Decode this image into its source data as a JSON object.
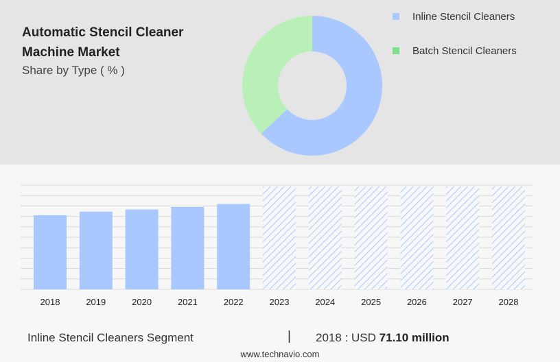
{
  "title": "Automatic Stencil Cleaner Machine Market",
  "subtitle": "Share by Type ( % )",
  "colors": {
    "inline": "#a8c8ff",
    "batch": "#b8f0b8",
    "batch_legend": "#7ee08e",
    "hatch": "#a8c8ff",
    "grid": "#d8d8d8"
  },
  "chart_data": [
    {
      "type": "pie",
      "title": "Automatic Stencil Cleaner Machine Market",
      "subtitle": "Share by Type ( % )",
      "legend_position": "top-right",
      "categories": [
        "Inline Stencil Cleaners",
        "Batch Stencil Cleaners"
      ],
      "values": [
        63,
        37
      ]
    },
    {
      "type": "bar",
      "categories": [
        "2018",
        "2019",
        "2020",
        "2021",
        "2022",
        "2023",
        "2024",
        "2025",
        "2026",
        "2027",
        "2028"
      ],
      "values": [
        71.1,
        74.5,
        76.6,
        79.0,
        81.9,
        null,
        null,
        null,
        null,
        null,
        null
      ],
      "forecast_categories": [
        "2023",
        "2024",
        "2025",
        "2026",
        "2027",
        "2028"
      ],
      "ylim": [
        0,
        100
      ],
      "grid": true
    }
  ],
  "footer": {
    "segment": "Inline Stencil Cleaners Segment",
    "divider": "|",
    "value_prefix": "2018 : USD",
    "value_bold": "71.10 million"
  },
  "source": "www.technavio.com"
}
